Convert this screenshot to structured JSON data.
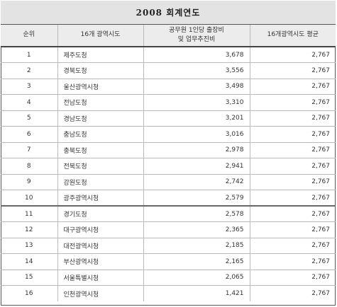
{
  "title": "2008 회계연도",
  "headers": {
    "rank": "순위",
    "region": "16개 광역시도",
    "cost_line1": "공무원 1인당 출장비",
    "cost_line2": "및 업무추진비",
    "average": "16개광역시도 평균"
  },
  "rows": [
    {
      "rank": "1",
      "name": "제주도청",
      "cost": "3,678",
      "avg": "2,767"
    },
    {
      "rank": "2",
      "name": "경북도청",
      "cost": "3,556",
      "avg": "2,767"
    },
    {
      "rank": "3",
      "name": "울산광역시청",
      "cost": "3,498",
      "avg": "2,767"
    },
    {
      "rank": "4",
      "name": "전남도청",
      "cost": "3,310",
      "avg": "2,767"
    },
    {
      "rank": "5",
      "name": "경남도청",
      "cost": "3,201",
      "avg": "2,767"
    },
    {
      "rank": "6",
      "name": "충남도청",
      "cost": "3,016",
      "avg": "2,767"
    },
    {
      "rank": "7",
      "name": "충북도청",
      "cost": "2,978",
      "avg": "2,767"
    },
    {
      "rank": "8",
      "name": "전북도청",
      "cost": "2,941",
      "avg": "2,767"
    },
    {
      "rank": "9",
      "name": "강원도청",
      "cost": "2,742",
      "avg": "2,767"
    },
    {
      "rank": "10",
      "name": "광주광역시청",
      "cost": "2,579",
      "avg": "2,767"
    },
    {
      "rank": "11",
      "name": "경기도청",
      "cost": "2,578",
      "avg": "2,767"
    },
    {
      "rank": "12",
      "name": "대구광역시청",
      "cost": "2,365",
      "avg": "2,767"
    },
    {
      "rank": "13",
      "name": "대전광역시청",
      "cost": "2,185",
      "avg": "2,767"
    },
    {
      "rank": "14",
      "name": "부산광역시청",
      "cost": "2,165",
      "avg": "2,767"
    },
    {
      "rank": "15",
      "name": "서울특별시청",
      "cost": "2,065",
      "avg": "2,767"
    },
    {
      "rank": "16",
      "name": "인천광역시청",
      "cost": "1,421",
      "avg": "2,767"
    }
  ]
}
